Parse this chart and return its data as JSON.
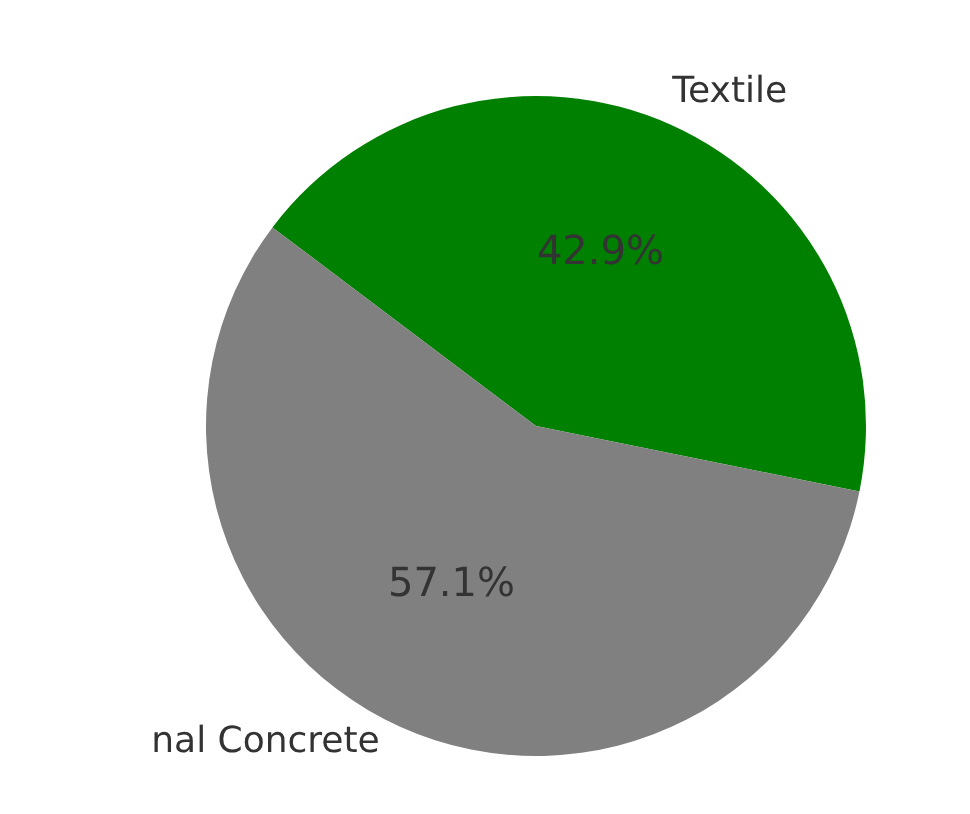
{
  "chart_data": {
    "type": "pie",
    "categories": [
      "Textile",
      "nal Concrete"
    ],
    "values": [
      42.9,
      57.1
    ],
    "colors": [
      "#008000",
      "#808080"
    ],
    "value_labels": [
      "42.9%",
      "57.1%"
    ]
  }
}
